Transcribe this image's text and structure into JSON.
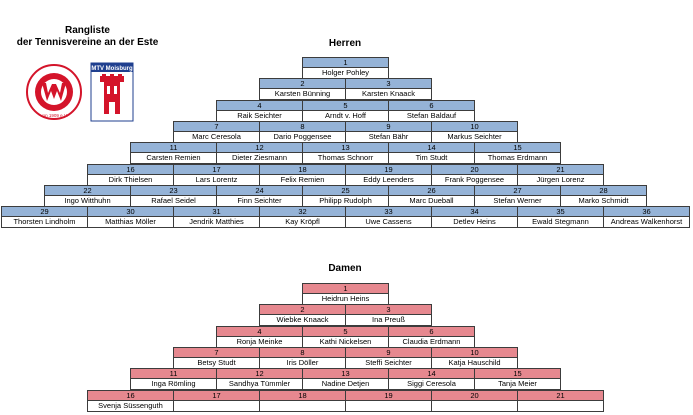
{
  "header": {
    "title_line1": "Rangliste",
    "title_line2": "der Tennisvereine an der Este"
  },
  "logos": {
    "left": {
      "text": "SV Hollenstedt-Wenzendorf",
      "year": "von 1909 e.V.",
      "colors": {
        "ring": "#d4142a",
        "bg": "#ffffff"
      }
    },
    "right": {
      "text": "MTV Moisburg",
      "colors": {
        "banner": "#1f3f8f",
        "tower": "#d4142a"
      }
    }
  },
  "herren": {
    "title": "Herren",
    "rows": [
      [
        {
          "n": "1",
          "name": "Holger Pohley"
        }
      ],
      [
        {
          "n": "2",
          "name": "Karsten Bünning"
        },
        {
          "n": "3",
          "name": "Karsten Knaack"
        }
      ],
      [
        {
          "n": "4",
          "name": "Raik Seichter"
        },
        {
          "n": "5",
          "name": "Arndt v. Hoff"
        },
        {
          "n": "6",
          "name": "Stefan Baldauf"
        }
      ],
      [
        {
          "n": "7",
          "name": "Marc Ceresola"
        },
        {
          "n": "8",
          "name": "Dario Poggensee"
        },
        {
          "n": "9",
          "name": "Stefan Bähr"
        },
        {
          "n": "10",
          "name": "Markus Seichter"
        }
      ],
      [
        {
          "n": "11",
          "name": "Carsten Remien"
        },
        {
          "n": "12",
          "name": "Dieter Ziesmann"
        },
        {
          "n": "13",
          "name": "Thomas Schnorr"
        },
        {
          "n": "14",
          "name": "Tim Studt"
        },
        {
          "n": "15",
          "name": "Thomas Erdmann"
        }
      ],
      [
        {
          "n": "16",
          "name": "Dirk Thielsen"
        },
        {
          "n": "17",
          "name": "Lars Lorentz"
        },
        {
          "n": "18",
          "name": "Felix Remien"
        },
        {
          "n": "19",
          "name": "Eddy Leenders"
        },
        {
          "n": "20",
          "name": "Frank Poggensee"
        },
        {
          "n": "21",
          "name": "Jürgen Lorenz"
        }
      ],
      [
        {
          "n": "22",
          "name": "Ingo Witthuhn"
        },
        {
          "n": "23",
          "name": "Rafael Seidel"
        },
        {
          "n": "24",
          "name": "Finn Seichter"
        },
        {
          "n": "25",
          "name": "Philipp Rudolph"
        },
        {
          "n": "26",
          "name": "Marc Dueball"
        },
        {
          "n": "27",
          "name": "Stefan Werner"
        },
        {
          "n": "28",
          "name": "Marko Schmidt"
        }
      ],
      [
        {
          "n": "29",
          "name": "Thorsten Lindholm"
        },
        {
          "n": "30",
          "name": "Matthias Möller"
        },
        {
          "n": "31",
          "name": "Jendrik Matthies"
        },
        {
          "n": "32",
          "name": "Kay Kröpfl"
        },
        {
          "n": "33",
          "name": "Uwe Cassens"
        },
        {
          "n": "34",
          "name": "Detlev Heins"
        },
        {
          "n": "35",
          "name": "Ewald Stegmann"
        },
        {
          "n": "36",
          "name": "Andreas Walkenhorst"
        }
      ]
    ]
  },
  "damen": {
    "title": "Damen",
    "rows": [
      [
        {
          "n": "1",
          "name": "Heidrun Heins"
        }
      ],
      [
        {
          "n": "2",
          "name": "Wiebke Knaack"
        },
        {
          "n": "3",
          "name": "Ina Preuß"
        }
      ],
      [
        {
          "n": "4",
          "name": "Ronja Meinke"
        },
        {
          "n": "5",
          "name": "Kathi Nickelsen"
        },
        {
          "n": "6",
          "name": "Claudia Erdmann"
        }
      ],
      [
        {
          "n": "7",
          "name": "Betsy Studt"
        },
        {
          "n": "8",
          "name": "Iris Döller"
        },
        {
          "n": "9",
          "name": "Steffi Seichter"
        },
        {
          "n": "10",
          "name": "Katja Hauschild"
        }
      ],
      [
        {
          "n": "11",
          "name": "Inga Römling"
        },
        {
          "n": "12",
          "name": "Sandhya Tümmler"
        },
        {
          "n": "13",
          "name": "Nadine Detjen"
        },
        {
          "n": "14",
          "name": "Siggi Ceresola"
        },
        {
          "n": "15",
          "name": "Tanja Meier"
        }
      ],
      [
        {
          "n": "16",
          "name": "Svenja Süssenguth"
        },
        {
          "n": "17",
          "name": ""
        },
        {
          "n": "18",
          "name": ""
        },
        {
          "n": "19",
          "name": ""
        },
        {
          "n": "20",
          "name": ""
        },
        {
          "n": "21",
          "name": ""
        }
      ]
    ]
  }
}
